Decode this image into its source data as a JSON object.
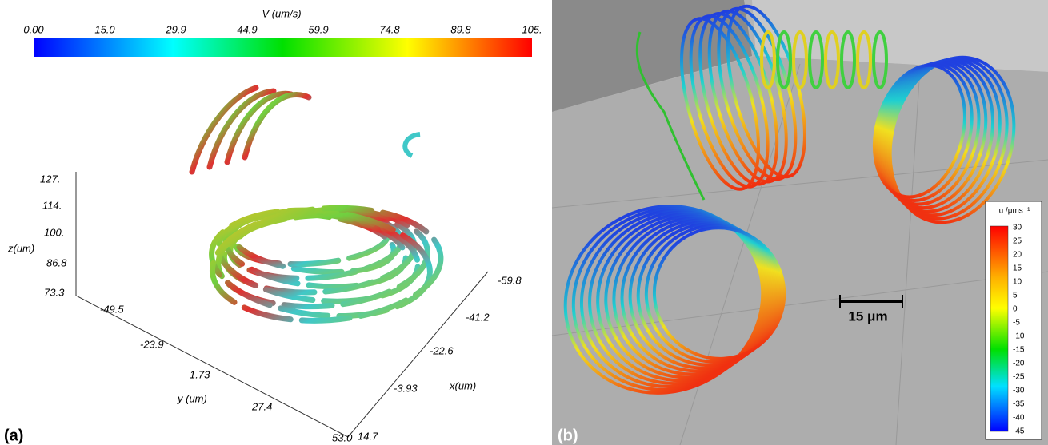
{
  "panel_a": {
    "label": "(a)",
    "colorbar": {
      "title": "V (um/s)",
      "ticks": [
        "0.00",
        "15.0",
        "29.9",
        "44.9",
        "59.9",
        "74.8",
        "89.8",
        "105."
      ]
    },
    "z_axis": {
      "title": "z(um)",
      "ticks": [
        "127.",
        "114.",
        "100.",
        "86.8",
        "73.3"
      ]
    },
    "y_axis": {
      "title": "y (um)",
      "ticks": [
        "-49.5",
        "-23.9",
        "1.73",
        "27.4",
        "53.0"
      ]
    },
    "x_axis": {
      "title": "x(um)",
      "ticks": [
        "-59.8",
        "-41.2",
        "-22.6",
        "-3.93",
        "14.7"
      ]
    }
  },
  "panel_b": {
    "label": "(b)",
    "colorbar": {
      "title": "u /μms⁻¹",
      "ticks": [
        "30",
        "25",
        "20",
        "15",
        "10",
        "5",
        "0",
        "-5",
        "-10",
        "-15",
        "-20",
        "-25",
        "-30",
        "-35",
        "-40",
        "-45"
      ]
    },
    "scale_bar": "15 μm"
  }
}
